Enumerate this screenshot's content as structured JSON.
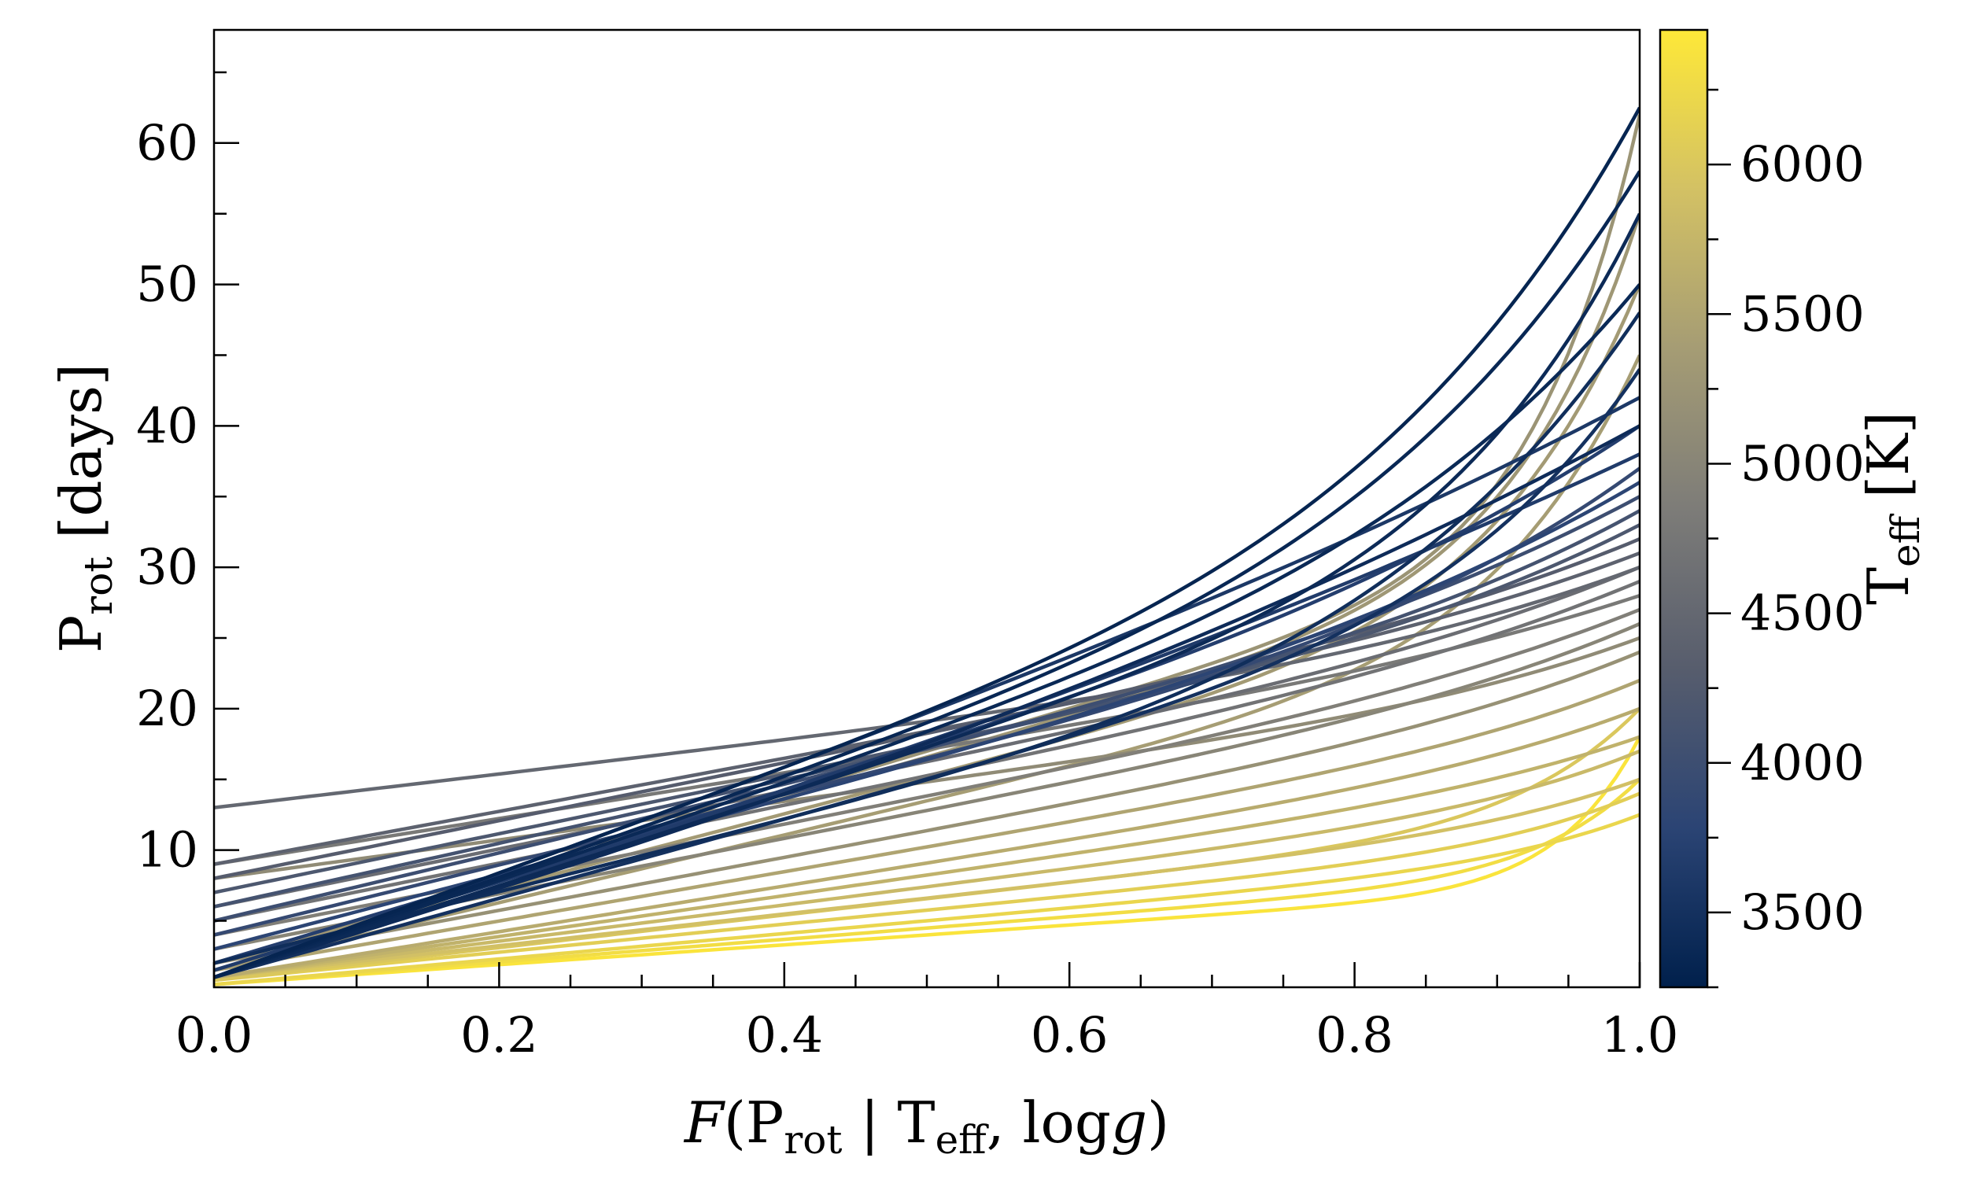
{
  "chart_data": {
    "type": "line",
    "title": "",
    "xlabel": {
      "italic": "F",
      "open": "(P",
      "sub1": "rot",
      "bar": " | T",
      "sub2": "eff",
      "rest": ", log",
      "italic2": "g",
      "close": ")"
    },
    "ylabel": {
      "main": "P",
      "sub": "rot",
      "rest": " [days]"
    },
    "xlim": [
      0.0,
      1.0
    ],
    "ylim": [
      0.3,
      68.0
    ],
    "xticks": [
      "0.0",
      "0.2",
      "0.4",
      "0.6",
      "0.8",
      "1.0"
    ],
    "yticks": [
      "10",
      "20",
      "30",
      "40",
      "50",
      "60"
    ],
    "grid": false,
    "legend": "none",
    "colorbar": {
      "label_main": "T",
      "label_sub": "eff",
      "label_rest": " [K]",
      "range": [
        3250,
        6450
      ],
      "ticks": [
        "3500",
        "4000",
        "4500",
        "5000",
        "5500",
        "6000"
      ],
      "colors": [
        "#00204c",
        "#2b4474",
        "#575d6d",
        "#7d7c78",
        "#a59c74",
        "#d3c164",
        "#fee838"
      ]
    },
    "curve_model": "P(F) = P0 + (Pmax - P0) * (s * F + (1 - s) * F^k) for F in [0, 1]; one curve per star, colored by Teff",
    "series": [
      {
        "teff": 3320,
        "p0": 1.0,
        "pmax": 62.5,
        "s": 0.6,
        "k": 6
      },
      {
        "teff": 3350,
        "p0": 1.0,
        "pmax": 58.0,
        "s": 0.62,
        "k": 6
      },
      {
        "teff": 3400,
        "p0": 1.0,
        "pmax": 55.0,
        "s": 0.6,
        "k": 8
      },
      {
        "teff": 3450,
        "p0": 2.0,
        "pmax": 48.0,
        "s": 0.55,
        "k": 6
      },
      {
        "teff": 3380,
        "p0": 1.0,
        "pmax": 50.0,
        "s": 0.7,
        "k": 6
      },
      {
        "teff": 3500,
        "p0": 1.0,
        "pmax": 44.0,
        "s": 0.65,
        "k": 8
      },
      {
        "teff": 3420,
        "p0": 1.0,
        "pmax": 40.0,
        "s": 0.8,
        "k": 3
      },
      {
        "teff": 3600,
        "p0": 1.0,
        "pmax": 42.0,
        "s": 0.9,
        "k": 4
      },
      {
        "teff": 3650,
        "p0": 1.5,
        "pmax": 38.0,
        "s": 0.85,
        "k": 3
      },
      {
        "teff": 3700,
        "p0": 2.0,
        "pmax": 40.0,
        "s": 0.8,
        "k": 5
      },
      {
        "teff": 3800,
        "p0": 3.0,
        "pmax": 36.0,
        "s": 0.8,
        "k": 5
      },
      {
        "teff": 3900,
        "p0": 4.0,
        "pmax": 37.0,
        "s": 0.75,
        "k": 6
      },
      {
        "teff": 4000,
        "p0": 5.0,
        "pmax": 35.0,
        "s": 0.8,
        "k": 5
      },
      {
        "teff": 4100,
        "p0": 6.0,
        "pmax": 34.0,
        "s": 0.8,
        "k": 6
      },
      {
        "teff": 4200,
        "p0": 7.0,
        "pmax": 33.0,
        "s": 0.8,
        "k": 6
      },
      {
        "teff": 4300,
        "p0": 8.0,
        "pmax": 32.0,
        "s": 0.85,
        "k": 6
      },
      {
        "teff": 4400,
        "p0": 9.0,
        "pmax": 31.0,
        "s": 0.85,
        "k": 6
      },
      {
        "teff": 4500,
        "p0": 13.0,
        "pmax": 30.0,
        "s": 0.7,
        "k": 5
      },
      {
        "teff": 4600,
        "p0": 6.0,
        "pmax": 30.0,
        "s": 0.85,
        "k": 6
      },
      {
        "teff": 4700,
        "p0": 5.0,
        "pmax": 29.0,
        "s": 0.85,
        "k": 6
      },
      {
        "teff": 4800,
        "p0": 9.0,
        "pmax": 28.0,
        "s": 0.85,
        "k": 6
      },
      {
        "teff": 4900,
        "p0": 4.0,
        "pmax": 27.0,
        "s": 0.85,
        "k": 6
      },
      {
        "teff": 5000,
        "p0": 3.0,
        "pmax": 26.0,
        "s": 0.85,
        "k": 7
      },
      {
        "teff": 5100,
        "p0": 8.0,
        "pmax": 25.0,
        "s": 0.8,
        "k": 7
      },
      {
        "teff": 5200,
        "p0": 2.0,
        "pmax": 24.0,
        "s": 0.85,
        "k": 7
      },
      {
        "teff": 5250,
        "p0": 2.0,
        "pmax": 62.0,
        "s": 0.5,
        "k": 14
      },
      {
        "teff": 5300,
        "p0": 2.0,
        "pmax": 55.0,
        "s": 0.55,
        "k": 12
      },
      {
        "teff": 5350,
        "p0": 2.0,
        "pmax": 50.0,
        "s": 0.55,
        "k": 10
      },
      {
        "teff": 5400,
        "p0": 1.5,
        "pmax": 45.0,
        "s": 0.55,
        "k": 10
      },
      {
        "teff": 5500,
        "p0": 1.5,
        "pmax": 22.0,
        "s": 0.85,
        "k": 8
      },
      {
        "teff": 5600,
        "p0": 1.0,
        "pmax": 20.0,
        "s": 0.85,
        "k": 8
      },
      {
        "teff": 5700,
        "p0": 1.0,
        "pmax": 18.0,
        "s": 0.85,
        "k": 8
      },
      {
        "teff": 5800,
        "p0": 1.0,
        "pmax": 17.0,
        "s": 0.8,
        "k": 9
      },
      {
        "teff": 5900,
        "p0": 1.0,
        "pmax": 15.0,
        "s": 0.8,
        "k": 9
      },
      {
        "teff": 6000,
        "p0": 0.8,
        "pmax": 20.0,
        "s": 0.6,
        "k": 12
      },
      {
        "teff": 6100,
        "p0": 0.8,
        "pmax": 14.0,
        "s": 0.75,
        "k": 10
      },
      {
        "teff": 6200,
        "p0": 0.5,
        "pmax": 12.5,
        "s": 0.75,
        "k": 10
      },
      {
        "teff": 6300,
        "p0": 0.5,
        "pmax": 15.0,
        "s": 0.55,
        "k": 14
      },
      {
        "teff": 6400,
        "p0": 0.5,
        "pmax": 18.0,
        "s": 0.4,
        "k": 18
      }
    ]
  }
}
